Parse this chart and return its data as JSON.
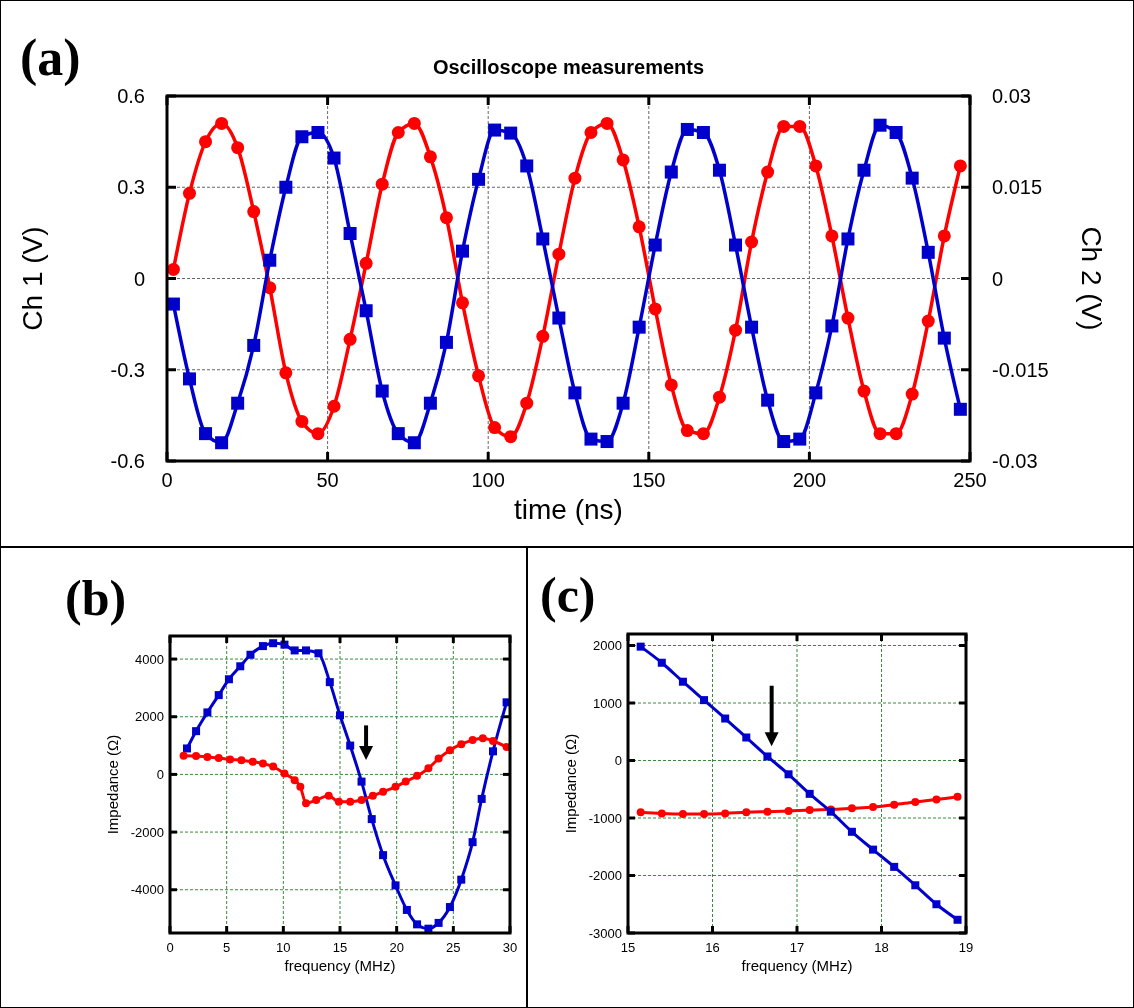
{
  "chart_data": [
    {
      "type": "line",
      "title": "Oscilloscope measurements",
      "xlabel": "time (ns)",
      "ylabel": "Ch 1 (V)",
      "y2label": "Ch 2 (V)",
      "annotations": [
        "(a)"
      ],
      "x": [
        2,
        7,
        12,
        17,
        22,
        27,
        32,
        37,
        42,
        47,
        52,
        57,
        62,
        67,
        72,
        77,
        82,
        87,
        92,
        97,
        102,
        107,
        112,
        117,
        122,
        127,
        132,
        137,
        142,
        147,
        152,
        157,
        162,
        167,
        172,
        177,
        182,
        187,
        192,
        197,
        202,
        207,
        212,
        217,
        222,
        227,
        232,
        237,
        242,
        247
      ],
      "xlim": [
        0,
        250
      ],
      "xticks": [
        0,
        50,
        100,
        150,
        200,
        250
      ],
      "ylim": [
        -0.6,
        0.6
      ],
      "yticks": [
        -0.6,
        -0.3,
        0,
        0.3,
        0.6
      ],
      "y2lim": [
        -0.03,
        0.03
      ],
      "y2ticks": [
        -0.03,
        -0.015,
        0,
        0.015,
        0.03
      ],
      "grid": true,
      "line_style": "solid",
      "series": [
        {
          "color": "#ff0000",
          "marker": "circle",
          "values": [
            0.03,
            0.28,
            0.45,
            0.51,
            0.43,
            0.22,
            -0.03,
            -0.31,
            -0.47,
            -0.51,
            -0.42,
            -0.2,
            0.05,
            0.31,
            0.48,
            0.51,
            0.4,
            0.2,
            -0.08,
            -0.32,
            -0.49,
            -0.52,
            -0.41,
            -0.19,
            0.08,
            0.33,
            0.48,
            0.51,
            0.39,
            0.17,
            -0.1,
            -0.35,
            -0.5,
            -0.51,
            -0.39,
            -0.17,
            0.12,
            0.35,
            0.5,
            0.5,
            0.37,
            0.14,
            -0.13,
            -0.37,
            -0.51,
            -0.51,
            -0.38,
            -0.14,
            0.14,
            0.37
          ]
        },
        {
          "color": "#0000cc",
          "marker": "square",
          "axis": "y2",
          "values": [
            -0.0042,
            -0.0165,
            -0.0255,
            -0.027,
            -0.0205,
            -0.011,
            0.003,
            0.015,
            0.0233,
            0.024,
            0.0198,
            0.0074,
            -0.0053,
            -0.0185,
            -0.0255,
            -0.027,
            -0.0205,
            -0.0105,
            0.0045,
            0.0163,
            0.0244,
            0.0239,
            0.0185,
            0.0065,
            -0.0065,
            -0.0188,
            -0.0264,
            -0.0268,
            -0.0205,
            -0.008,
            0.0055,
            0.0175,
            0.0245,
            0.024,
            0.0178,
            0.0055,
            -0.008,
            -0.02,
            -0.0268,
            -0.0264,
            -0.0188,
            -0.0078,
            0.0065,
            0.0178,
            0.0252,
            0.024,
            0.0165,
            0.0043,
            -0.0098,
            -0.0215
          ]
        }
      ]
    },
    {
      "type": "line",
      "xlabel": "frequency (MHz)",
      "ylabel": "Impedance (Ω)",
      "annotations": [
        "(b)"
      ],
      "xlim": [
        0,
        30
      ],
      "xticks": [
        0,
        5,
        10,
        15,
        20,
        25,
        30
      ],
      "ylim": [
        -5500,
        4800
      ],
      "yticks": [
        -4000,
        -2000,
        0,
        2000,
        4000
      ],
      "grid": true,
      "line_style": "solid",
      "series": [
        {
          "color": "#0000cc",
          "marker": "square",
          "x": [
            1.5,
            2.3,
            3.3,
            4.3,
            5.2,
            6.2,
            7.1,
            8.2,
            9.1,
            10.1,
            11,
            12,
            13.1,
            14.1,
            15,
            15.9,
            16.9,
            17.8,
            18.8,
            19.9,
            20.9,
            21.8,
            22.8,
            23.7,
            24.7,
            25.7,
            26.7,
            27.5,
            28.5,
            29.7
          ],
          "values": [
            900,
            1500,
            2150,
            2750,
            3300,
            3750,
            4150,
            4450,
            4550,
            4500,
            4300,
            4300,
            4200,
            3200,
            2050,
            1000,
            -250,
            -1550,
            -2800,
            -3850,
            -4700,
            -5200,
            -5350,
            -5150,
            -4600,
            -3650,
            -2350,
            -850,
            800,
            2500
          ]
        },
        {
          "color": "#ff0000",
          "marker": "circle",
          "x": [
            1.2,
            2.3,
            3.3,
            4.3,
            5.3,
            6.3,
            7.3,
            8.2,
            9.1,
            10.1,
            11,
            11.5,
            12,
            12.9,
            14,
            14.9,
            15.9,
            16.9,
            17.9,
            18.8,
            19.9,
            20.8,
            21.8,
            22.8,
            23.7,
            24.7,
            25.7,
            26.7,
            27.6,
            28.5,
            29.7
          ],
          "values": [
            650,
            640,
            600,
            570,
            520,
            490,
            440,
            380,
            270,
            30,
            -200,
            -430,
            -1000,
            -890,
            -740,
            -950,
            -950,
            -890,
            -740,
            -600,
            -430,
            -250,
            -50,
            210,
            550,
            840,
            1050,
            1190,
            1250,
            1160,
            950
          ]
        }
      ]
    },
    {
      "type": "line",
      "xlabel": "frequency (MHz)",
      "ylabel": "Impedance (Ω)",
      "annotations": [
        "(c)"
      ],
      "x": [
        15.15,
        15.4,
        15.65,
        15.9,
        16.15,
        16.4,
        16.65,
        16.9,
        17.15,
        17.4,
        17.65,
        17.9,
        18.15,
        18.4,
        18.65,
        18.9
      ],
      "xlim": [
        15,
        19
      ],
      "xticks": [
        15,
        16,
        17,
        18,
        19
      ],
      "ylim": [
        -3000,
        2200
      ],
      "yticks": [
        -3000,
        -2000,
        -1000,
        0,
        1000,
        2000
      ],
      "grid": true,
      "line_style": "solid",
      "series": [
        {
          "color": "#ff0000",
          "marker": "circle",
          "values": [
            -900,
            -920,
            -930,
            -930,
            -920,
            -900,
            -890,
            -880,
            -860,
            -850,
            -830,
            -810,
            -770,
            -720,
            -680,
            -630
          ]
        },
        {
          "color": "#0000cc",
          "marker": "square",
          "values": [
            1980,
            1700,
            1370,
            1050,
            730,
            400,
            70,
            -240,
            -580,
            -890,
            -1240,
            -1550,
            -1850,
            -2170,
            -2500,
            -2770
          ]
        }
      ]
    }
  ]
}
